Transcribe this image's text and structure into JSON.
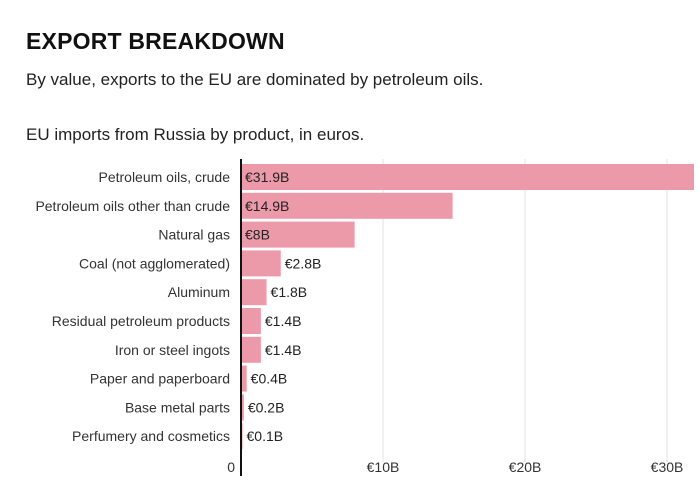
{
  "header": {
    "title": "EXPORT BREAKDOWN",
    "subtitle": "By value, exports to the EU are dominated by petroleum oils."
  },
  "chart_data": {
    "type": "bar",
    "orientation": "horizontal",
    "title": "EU imports from Russia by product, in euros.",
    "categories": [
      "Petroleum oils, crude",
      "Petroleum oils other than crude",
      "Natural gas",
      "Coal (not agglomerated)",
      "Aluminum",
      "Residual petroleum products",
      "Iron or steel ingots",
      "Paper and paperboard",
      "Base metal parts",
      "Perfumery and cosmetics"
    ],
    "values": [
      31.9,
      14.9,
      8,
      2.8,
      1.8,
      1.4,
      1.4,
      0.4,
      0.2,
      0.1
    ],
    "data_labels": [
      "€31.9B",
      "€14.9B",
      "€8B",
      "€2.8B",
      "€1.8B",
      "€1.4B",
      "€1.4B",
      "€0.4B",
      "€0.2B",
      "€0.1B"
    ],
    "x_ticks": [
      0,
      10,
      20,
      30
    ],
    "x_tick_labels": [
      "0",
      "€10B",
      "€20B",
      "€30B"
    ],
    "xlim": [
      0,
      31.9
    ],
    "grid": true,
    "colors": {
      "bar": "#ec9aaa",
      "grid": "#e3e3e3",
      "axis": "#111111"
    }
  }
}
